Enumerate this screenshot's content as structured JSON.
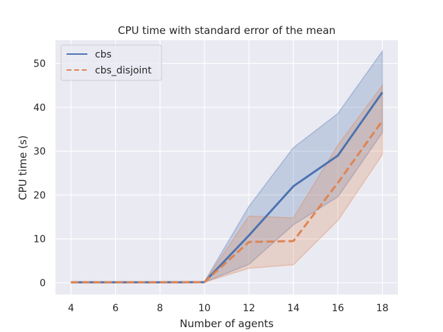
{
  "chart_data": {
    "type": "line",
    "title": "CPU time with standard error of the mean",
    "xlabel": "Number of agents",
    "ylabel": "CPU time (s)",
    "x": [
      4,
      6,
      8,
      10,
      12,
      14,
      16,
      18
    ],
    "xticks": [
      "4",
      "6",
      "8",
      "10",
      "12",
      "14",
      "16",
      "18"
    ],
    "yticks": [
      "0",
      "10",
      "20",
      "30",
      "40",
      "50"
    ],
    "xlim": [
      3.3,
      18.7
    ],
    "ylim": [
      -2.7,
      55.3
    ],
    "grid": true,
    "legend_position": "top-left",
    "background": "#eaeaf2",
    "series": [
      {
        "name": "cbs",
        "color": "#4c72b0",
        "style": "solid",
        "values": [
          0.1,
          0.1,
          0.1,
          0.15,
          10.8,
          22.0,
          29.0,
          43.4
        ],
        "lower": [
          0.05,
          0.05,
          0.05,
          0.1,
          4.2,
          13.2,
          19.6,
          34.2
        ],
        "upper": [
          0.15,
          0.15,
          0.15,
          0.2,
          17.4,
          30.8,
          38.6,
          52.8
        ]
      },
      {
        "name": "cbs_disjoint",
        "color": "#dd8452",
        "style": "dashed",
        "values": [
          0.1,
          0.1,
          0.1,
          0.15,
          9.3,
          9.5,
          22.8,
          36.9
        ],
        "lower": [
          0.05,
          0.05,
          0.05,
          0.1,
          3.3,
          4.1,
          14.2,
          29.2
        ],
        "upper": [
          0.15,
          0.15,
          0.15,
          0.2,
          15.2,
          14.8,
          31.4,
          45.0
        ]
      }
    ]
  }
}
